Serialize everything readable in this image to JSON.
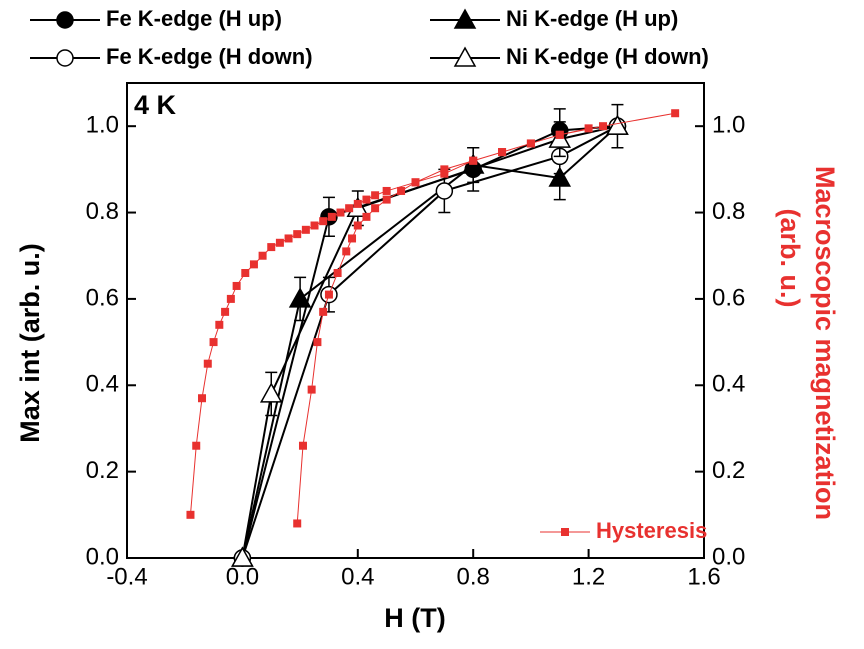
{
  "chart_data": {
    "type": "line",
    "annotation": "4 K",
    "xlabel": "H (T)",
    "ylabel": "Max int (arb. u.)",
    "y2label": [
      "Macroscopic magnetization",
      "(arb. u.)"
    ],
    "xlim": [
      -0.4,
      1.6
    ],
    "xticks": [
      -0.4,
      {
        "value": 0,
        "label": "0.0"
      },
      0.4,
      0.8,
      1.2,
      1.6
    ],
    "ylim": [
      0,
      1.1
    ],
    "yticks": [
      {
        "value": 0,
        "label": "0.0"
      },
      0.2,
      0.4,
      0.6,
      0.8,
      {
        "value": 1,
        "label": "1.0"
      }
    ],
    "y2lim": [
      0,
      1.1
    ],
    "y2ticks": [
      {
        "value": 0,
        "label": "0.0"
      },
      0.2,
      0.4,
      0.6,
      0.8,
      {
        "value": 1,
        "label": "1.0"
      }
    ],
    "series": [
      {
        "name": "Fe K-edge (H up)",
        "color": "#000000",
        "marker": "circle",
        "filled": true,
        "x": [
          0,
          0.3,
          0.8,
          1.1,
          1.3
        ],
        "values": [
          0,
          0.79,
          0.9,
          0.99,
          1.0
        ],
        "errors": [
          null,
          0.045,
          0.05,
          0.05,
          null
        ]
      },
      {
        "name": "Ni K-edge (H up)",
        "color": "#000000",
        "marker": "triangle",
        "filled": true,
        "x": [
          0,
          0.2,
          0.8,
          1.1,
          1.3
        ],
        "values": [
          0,
          0.6,
          0.91,
          0.88,
          1.0
        ],
        "errors": [
          null,
          0.05,
          0.04,
          0.05,
          null
        ]
      },
      {
        "name": "Fe K-edge (H down)",
        "color": "#000000",
        "marker": "circle",
        "filled": false,
        "x": [
          1.3,
          1.1,
          0.7,
          0.3,
          0
        ],
        "values": [
          1.0,
          0.93,
          0.85,
          0.61,
          0
        ],
        "errors": [
          null,
          0.04,
          0.05,
          0.04,
          null
        ]
      },
      {
        "name": "Ni K-edge (H down)",
        "color": "#000000",
        "marker": "triangle",
        "filled": false,
        "x": [
          1.3,
          1.1,
          0.4,
          0.1,
          0
        ],
        "values": [
          1.0,
          0.97,
          0.81,
          0.38,
          0
        ],
        "errors": [
          0.05,
          0.04,
          0.04,
          0.05,
          null
        ]
      },
      {
        "name": "Hysteresis",
        "color": "#e8312f",
        "marker": "square",
        "filled": true,
        "axis": "y2",
        "x": [
          1.5,
          1.25,
          1.1,
          1.0,
          0.9,
          0.8,
          0.7,
          0.6,
          0.5,
          0.46,
          0.43,
          0.4,
          0.37,
          0.34,
          0.31,
          0.28,
          0.25,
          0.22,
          0.19,
          0.16,
          0.13,
          0.1,
          0.07,
          0.04,
          0.01,
          -0.02,
          -0.04,
          -0.06,
          -0.08,
          -0.1,
          -0.12,
          -0.14,
          -0.16,
          -0.18,
          null,
          0.19,
          0.21,
          0.24,
          0.26,
          0.28,
          0.3,
          0.33,
          0.36,
          0.38,
          0.4,
          0.43,
          0.46,
          0.5,
          0.55,
          0.6,
          0.7,
          0.8,
          0.9,
          1.0,
          1.1,
          1.2
        ],
        "values": [
          1.03,
          1.0,
          0.98,
          0.96,
          0.94,
          0.92,
          0.9,
          0.87,
          0.85,
          0.84,
          0.83,
          0.82,
          0.81,
          0.8,
          0.79,
          0.78,
          0.77,
          0.76,
          0.75,
          0.74,
          0.73,
          0.72,
          0.7,
          0.68,
          0.66,
          0.63,
          0.6,
          0.57,
          0.54,
          0.5,
          0.45,
          0.37,
          0.26,
          0.1,
          null,
          0.08,
          0.26,
          0.39,
          0.5,
          0.57,
          0.61,
          0.66,
          0.71,
          0.74,
          0.77,
          0.79,
          0.81,
          0.83,
          0.85,
          0.87,
          0.89,
          0.92,
          0.94,
          0.96,
          0.98,
          0.995
        ]
      }
    ]
  }
}
